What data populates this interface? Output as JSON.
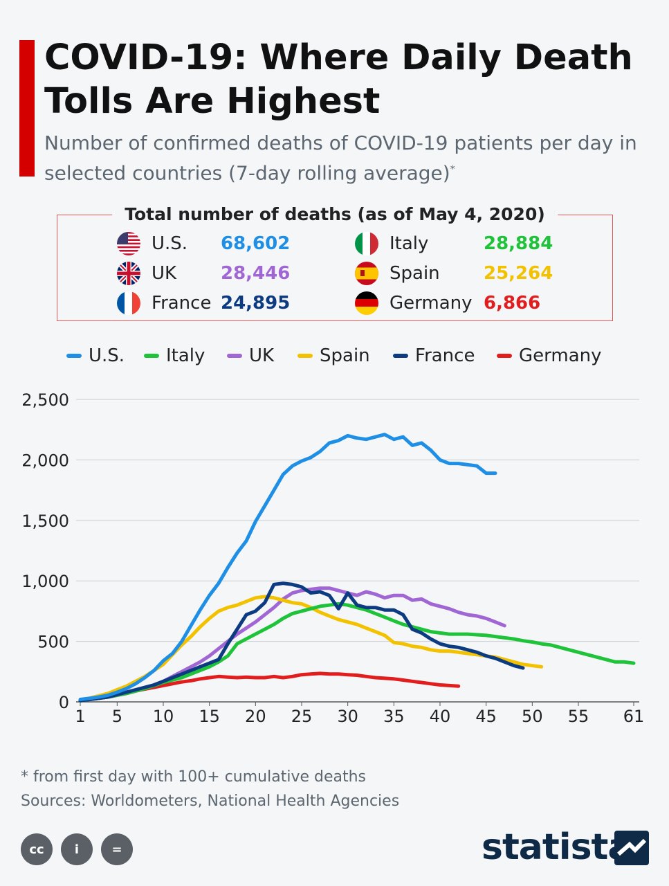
{
  "title": "COVID-19: Where Daily Death Tolls Are Highest",
  "subtitle": "Number of confirmed deaths of COVID-19 patients per day in selected countries (7-day rolling average)",
  "subtitle_mark": "*",
  "totals": {
    "heading": "Total number of deaths (as of May 4, 2020)",
    "rows": [
      {
        "country": "U.S.",
        "value": "68,602",
        "color": "#1f8fe6",
        "flag": "us"
      },
      {
        "country": "UK",
        "value": "28,446",
        "color": "#a066d3",
        "flag": "uk"
      },
      {
        "country": "France",
        "value": "24,895",
        "color": "#0d3b82",
        "flag": "fr"
      },
      {
        "country": "Italy",
        "value": "28,884",
        "color": "#1ec33a",
        "flag": "it"
      },
      {
        "country": "Spain",
        "value": "25,264",
        "color": "#f2c200",
        "flag": "es"
      },
      {
        "country": "Germany",
        "value": "6,866",
        "color": "#e11d1d",
        "flag": "de"
      }
    ]
  },
  "legend": [
    "U.S.",
    "Italy",
    "UK",
    "Spain",
    "France",
    "Germany"
  ],
  "chart_data": {
    "type": "line",
    "xlabel": "",
    "ylabel": "",
    "xlim": [
      1,
      61
    ],
    "ylim": [
      0,
      2500
    ],
    "x_ticks": [
      1,
      5,
      10,
      15,
      20,
      25,
      30,
      35,
      40,
      45,
      50,
      55,
      61
    ],
    "y_ticks": [
      0,
      500,
      1000,
      1500,
      2000,
      2500
    ],
    "y_tick_labels": [
      "0",
      "500",
      "1,000",
      "1,500",
      "2,000",
      "2,500"
    ],
    "grid": true,
    "series": [
      {
        "name": "U.S.",
        "color": "#1f8fe6",
        "x_start": 1,
        "values": [
          20,
          30,
          40,
          55,
          80,
          110,
          150,
          200,
          260,
          340,
          400,
          500,
          630,
          760,
          880,
          980,
          1110,
          1230,
          1330,
          1490,
          1620,
          1750,
          1880,
          1950,
          1990,
          2020,
          2070,
          2140,
          2160,
          2200,
          2180,
          2170,
          2190,
          2210,
          2170,
          2190,
          2120,
          2140,
          2080,
          2000,
          1970,
          1970,
          1960,
          1950,
          1890,
          1890
        ]
      },
      {
        "name": "Italy",
        "color": "#1ec33a",
        "x_start": 1,
        "values": [
          10,
          20,
          30,
          40,
          55,
          70,
          90,
          110,
          135,
          160,
          180,
          200,
          230,
          260,
          290,
          330,
          380,
          480,
          520,
          560,
          600,
          640,
          690,
          730,
          750,
          770,
          790,
          800,
          810,
          800,
          780,
          760,
          730,
          700,
          670,
          640,
          620,
          600,
          580,
          570,
          560,
          560,
          560,
          555,
          550,
          540,
          530,
          520,
          505,
          495,
          480,
          470,
          450,
          430,
          410,
          390,
          370,
          350,
          330,
          330,
          320
        ]
      },
      {
        "name": "UK",
        "color": "#a066d3",
        "x_start": 1,
        "values": [
          10,
          20,
          30,
          40,
          55,
          70,
          90,
          110,
          140,
          170,
          210,
          250,
          290,
          330,
          380,
          440,
          500,
          560,
          610,
          660,
          720,
          780,
          850,
          900,
          920,
          930,
          940,
          940,
          920,
          900,
          880,
          910,
          890,
          860,
          880,
          880,
          840,
          850,
          810,
          790,
          770,
          740,
          720,
          710,
          690,
          660,
          630
        ]
      },
      {
        "name": "Spain",
        "color": "#f2c200",
        "x_start": 1,
        "values": [
          10,
          30,
          50,
          70,
          100,
          130,
          170,
          210,
          260,
          310,
          390,
          470,
          540,
          620,
          690,
          750,
          780,
          800,
          830,
          860,
          870,
          860,
          840,
          820,
          810,
          780,
          740,
          710,
          680,
          660,
          640,
          610,
          580,
          550,
          490,
          480,
          460,
          450,
          430,
          420,
          420,
          410,
          400,
          390,
          380,
          370,
          350,
          330,
          310,
          300,
          290
        ]
      },
      {
        "name": "France",
        "color": "#0d3b82",
        "x_start": 1,
        "values": [
          10,
          20,
          30,
          40,
          60,
          80,
          100,
          120,
          140,
          170,
          200,
          230,
          260,
          290,
          320,
          350,
          480,
          600,
          720,
          750,
          820,
          970,
          980,
          970,
          950,
          900,
          910,
          880,
          770,
          900,
          800,
          780,
          780,
          760,
          760,
          720,
          600,
          570,
          520,
          480,
          460,
          450,
          430,
          410,
          380,
          360,
          330,
          300,
          280
        ]
      },
      {
        "name": "Germany",
        "color": "#e11d1d",
        "x_start": 1,
        "values": [
          10,
          20,
          30,
          40,
          55,
          70,
          90,
          105,
          120,
          135,
          150,
          165,
          175,
          190,
          200,
          210,
          205,
          200,
          205,
          200,
          200,
          210,
          200,
          210,
          225,
          230,
          235,
          230,
          230,
          225,
          220,
          210,
          200,
          195,
          190,
          180,
          170,
          160,
          150,
          140,
          135,
          130
        ]
      }
    ]
  },
  "footnote": "* from first day with 100+ cumulative deaths",
  "sources": "Sources: Worldometers, National Health Agencies",
  "license_icons": [
    "cc-icon",
    "by-icon",
    "nd-icon"
  ],
  "license_labels": [
    "cc",
    "i",
    "="
  ],
  "brand": "statista"
}
